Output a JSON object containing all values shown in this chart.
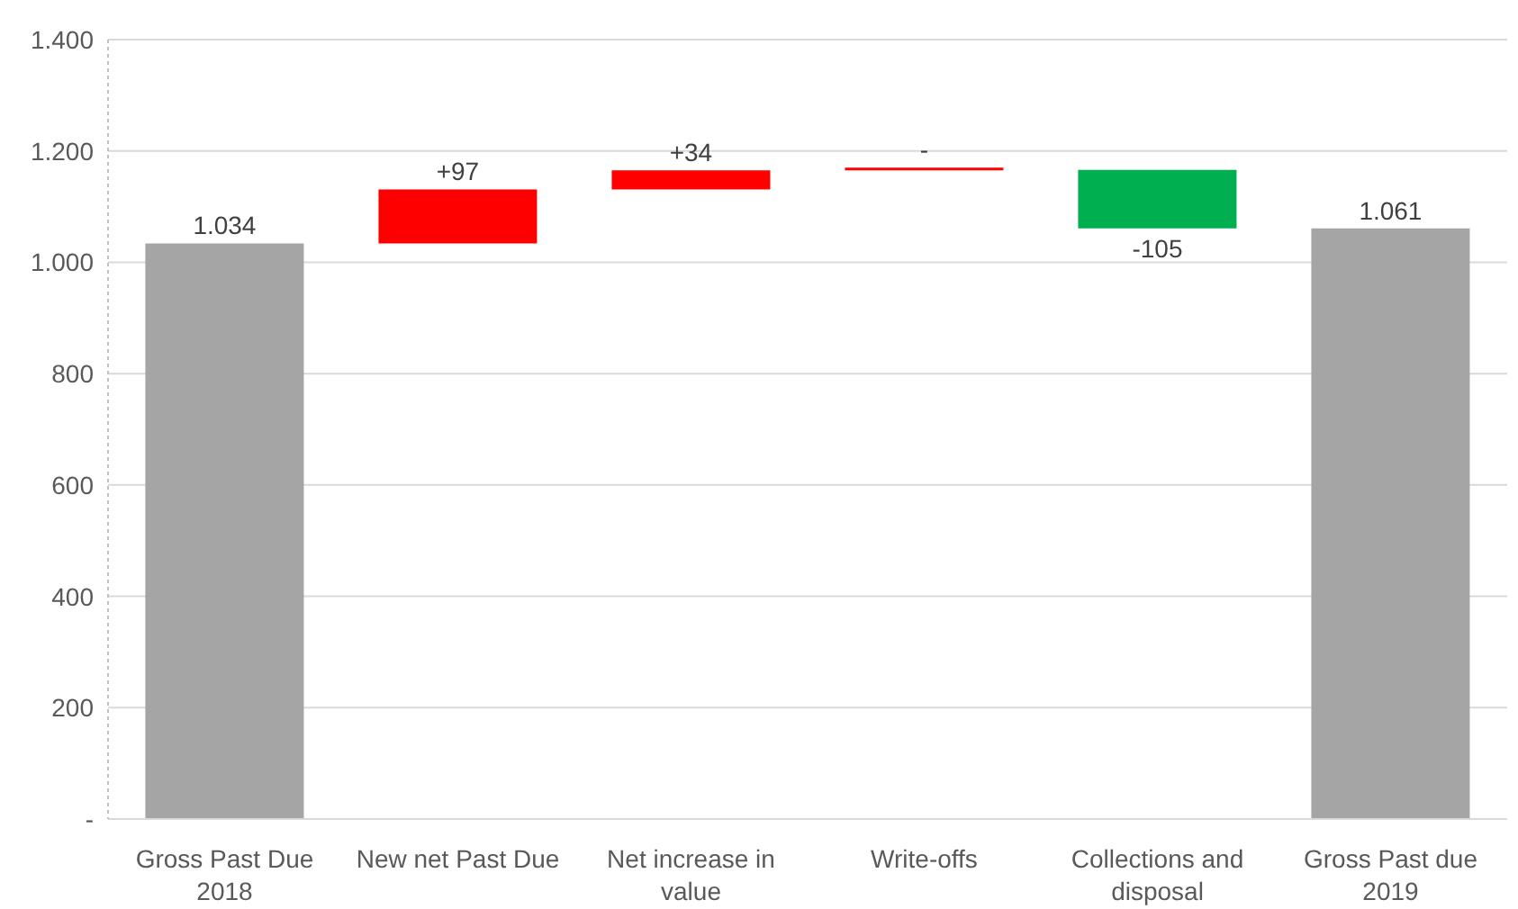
{
  "chart_data": {
    "type": "bar",
    "categories": [
      "Gross Past Due 2018",
      "New net Past Due",
      "Net increase in value",
      "Write-offs",
      "Collections and disposal",
      "Gross Past due 2019"
    ],
    "values": [
      1034,
      97,
      34,
      5,
      -105,
      1061
    ],
    "base": [
      0,
      1034,
      1131,
      1165,
      1166,
      0
    ],
    "colors": [
      "#a5a5a5",
      "#ff0000",
      "#ff0000",
      "#ff0000",
      "#00b050",
      "#a5a5a5"
    ],
    "value_labels": [
      "1.034",
      "+97",
      "+34",
      "-",
      "-105",
      "1.061"
    ],
    "ylim": [
      0,
      1400
    ],
    "yticks": [
      {
        "value": 0,
        "label": "-"
      },
      200,
      400,
      600,
      800,
      {
        "value": 1000,
        "label": "1.000"
      },
      {
        "value": 1200,
        "label": "1.200"
      },
      {
        "value": 1400,
        "label": "1.400"
      }
    ],
    "grid": "y"
  }
}
